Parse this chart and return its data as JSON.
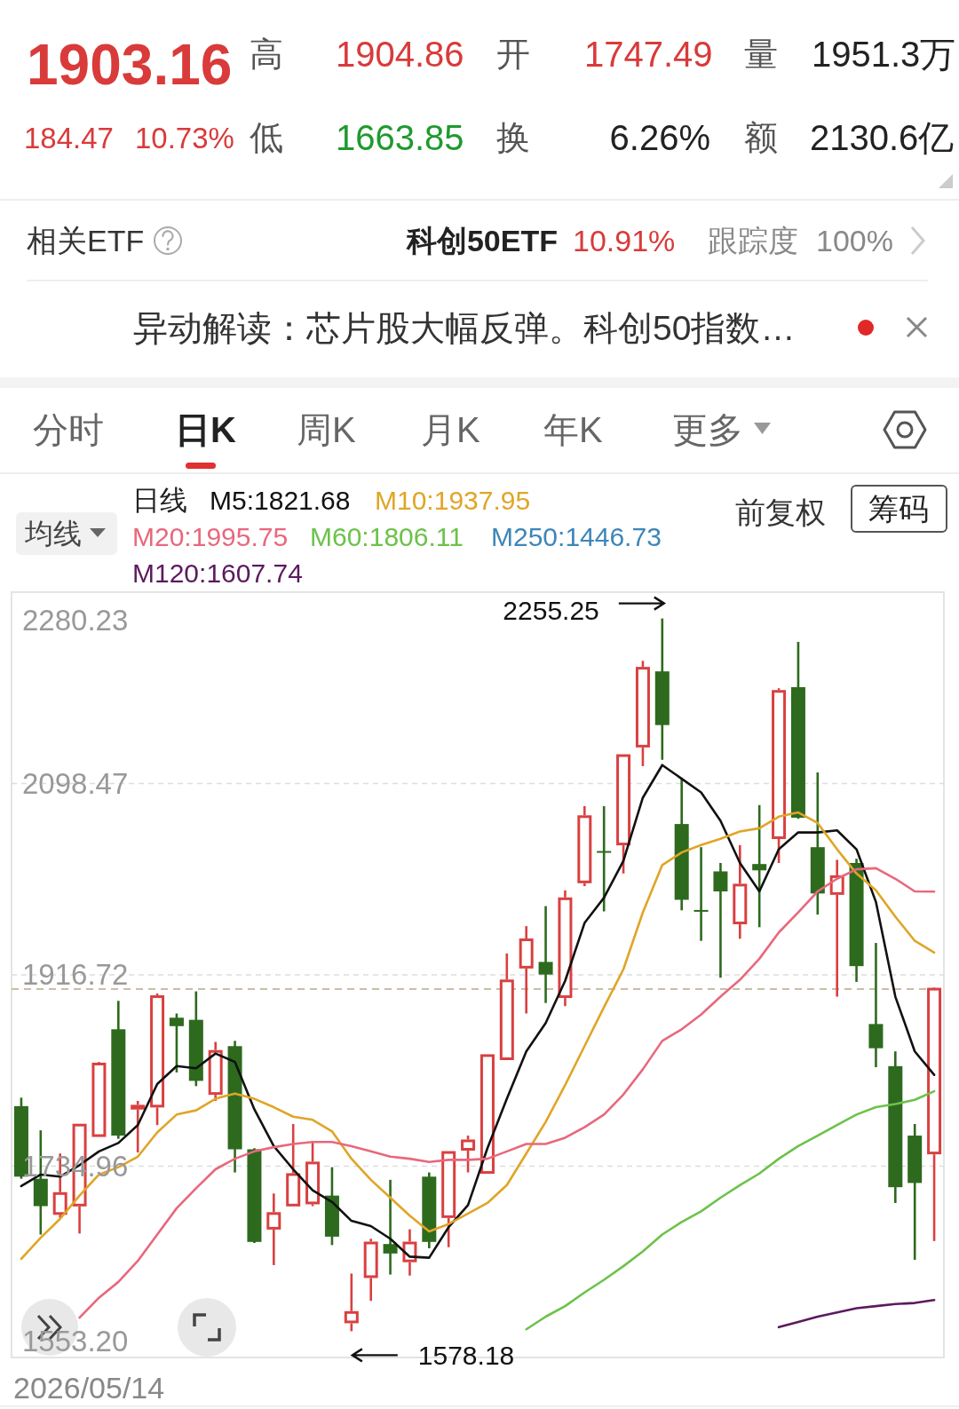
{
  "chart_data": {
    "type": "candlestick",
    "legend_title": "日线",
    "legend": "top",
    "categories": [
      null,
      null,
      null,
      null,
      null,
      null,
      null,
      null,
      null,
      null,
      null,
      null,
      null,
      null,
      null,
      null,
      null,
      null,
      null,
      null,
      null,
      null,
      null,
      null,
      null,
      null,
      null,
      null,
      null,
      null,
      null,
      null,
      null,
      null,
      null,
      null,
      null,
      null,
      null,
      null,
      null,
      null,
      null,
      null,
      null,
      null,
      null,
      null
    ],
    "ohlc": [
      [
        1792,
        1800,
        1723,
        1725
      ],
      [
        1723,
        1769,
        1670,
        1697
      ],
      [
        1690,
        1747,
        1686,
        1709
      ],
      [
        1698,
        1775,
        1671,
        1774
      ],
      [
        1764,
        1834,
        1764,
        1832
      ],
      [
        1865,
        1892,
        1761,
        1764
      ],
      [
        1790,
        1797,
        1748,
        1792
      ],
      [
        1792,
        1899,
        1774,
        1896
      ],
      [
        1876,
        1880,
        1824,
        1868
      ],
      [
        1874,
        1901,
        1811,
        1816
      ],
      [
        1804,
        1853,
        1797,
        1844
      ],
      [
        1849,
        1854,
        1729,
        1751
      ],
      [
        1751,
        1752,
        1662,
        1663
      ],
      [
        1676,
        1709,
        1641,
        1690
      ],
      [
        1698,
        1775,
        1698,
        1727
      ],
      [
        1700,
        1759,
        1697,
        1738
      ],
      [
        1707,
        1734,
        1660,
        1668
      ],
      [
        1587,
        1633,
        1578.18,
        1596
      ],
      [
        1630,
        1666,
        1607,
        1662
      ],
      [
        1661,
        1722,
        1632,
        1652
      ],
      [
        1645,
        1675,
        1631,
        1662
      ],
      [
        1725,
        1729,
        1657,
        1663
      ],
      [
        1687,
        1749,
        1658,
        1748
      ],
      [
        1751,
        1764,
        1729,
        1759
      ],
      [
        1729,
        1841,
        1728,
        1840
      ],
      [
        1837,
        1937,
        1836,
        1911
      ],
      [
        1924,
        1963,
        1880,
        1950
      ],
      [
        1929,
        1982,
        1890,
        1917
      ],
      [
        1896,
        1997,
        1887,
        1989
      ],
      [
        2005,
        2077,
        2001,
        2067
      ],
      [
        2034,
        2077,
        1977,
        2033
      ],
      [
        2041,
        2126,
        2013,
        2125
      ],
      [
        2134,
        2215,
        2115,
        2208
      ],
      [
        2205,
        2255.25,
        2121,
        2154
      ],
      [
        2060,
        2104,
        1978,
        1988
      ],
      [
        1978,
        2038,
        1949,
        1977
      ],
      [
        2015,
        2023,
        1914,
        1996
      ],
      [
        1966,
        2040,
        1951,
        2002
      ],
      [
        2022,
        2078,
        1962,
        2016
      ],
      [
        2047,
        2189,
        2023,
        2186
      ],
      [
        2190,
        2233,
        2065,
        2066
      ],
      [
        2038,
        2109,
        1974,
        1994
      ],
      [
        1994,
        2026,
        1896,
        2010
      ],
      [
        2023,
        2027,
        1910,
        1925
      ],
      [
        1870,
        1947,
        1829,
        1847
      ],
      [
        1830,
        1844,
        1700,
        1715
      ],
      [
        1764,
        1775,
        1646,
        1719
      ],
      [
        1747.49,
        1904.86,
        1663.85,
        1903.16
      ]
    ],
    "series": [
      {
        "name": "M5:1821.68",
        "type": "line",
        "color": "#111111",
        "values": [
          1716,
          1727,
          1725,
          1736,
          1749,
          1757,
          1774,
          1813,
          1830,
          1828,
          1842,
          1834,
          1789,
          1754,
          1732,
          1712,
          1701,
          1683,
          1678,
          1666,
          1649,
          1648,
          1677,
          1698,
          1752,
          1799,
          1844,
          1871,
          1911,
          1966,
          1990,
          2025,
          2085,
          2116,
          2103,
          2090,
          2063,
          2023,
          1996,
          2036,
          2052,
          2052,
          2054,
          2036,
          1986,
          1896,
          1844,
          1821.68
        ]
      },
      {
        "name": "M10:1937.95",
        "type": "line",
        "color": "#e0a526",
        "values": [
          1647,
          1667,
          1685,
          1707,
          1727,
          1734,
          1744,
          1767,
          1784,
          1788,
          1799,
          1804,
          1799,
          1791,
          1782,
          1779,
          1768,
          1742,
          1722,
          1705,
          1688,
          1673,
          1680,
          1690,
          1700,
          1717,
          1747,
          1777,
          1812,
          1849,
          1886,
          1922,
          1976,
          2021,
          2033,
          2040,
          2046,
          2053,
          2056,
          2067,
          2071,
          2061,
          2036,
          2013,
          1997,
          1972,
          1949,
          1937.95
        ]
      },
      {
        "name": "M20:1995.75",
        "type": "line",
        "color": "#e8687c",
        "values": [
          null,
          null,
          null,
          1591,
          1610,
          1625,
          1645,
          1670,
          1695,
          1714,
          1732,
          1742,
          1749,
          1753,
          1756,
          1758,
          1758,
          1754,
          1749,
          1744,
          1742,
          1739,
          1741,
          1741,
          1742,
          1749,
          1756,
          1756,
          1762,
          1772,
          1784,
          1803,
          1827,
          1854,
          1865,
          1879,
          1896,
          1912,
          1932,
          1957,
          1976,
          1996,
          2008,
          2017,
          2018,
          2008,
          1996,
          1995.75
        ]
      },
      {
        "name": "M60:1806.11",
        "type": "line",
        "color": "#6cc24a",
        "values": [
          null,
          null,
          null,
          null,
          null,
          null,
          null,
          null,
          null,
          null,
          null,
          null,
          null,
          null,
          null,
          null,
          null,
          null,
          null,
          null,
          null,
          null,
          null,
          null,
          null,
          null,
          1580,
          1592,
          1602,
          1615,
          1627,
          1640,
          1654,
          1670,
          1682,
          1692,
          1705,
          1717,
          1728,
          1742,
          1754,
          1764,
          1774,
          1784,
          1791,
          1794,
          1798,
          1806.11
        ]
      },
      {
        "name": "M250:1446.73",
        "type": "line",
        "color": "#3d86b8",
        "values": [
          null,
          null,
          null,
          null,
          null,
          null,
          null,
          null,
          null,
          null,
          null,
          null,
          null,
          null,
          null,
          null,
          null,
          null,
          null,
          null,
          null,
          null,
          null,
          null,
          null,
          null,
          null,
          null,
          null,
          null,
          null,
          null,
          null,
          null,
          null,
          null,
          null,
          null,
          null,
          null,
          null,
          null,
          null,
          null,
          null,
          null,
          null,
          null
        ]
      },
      {
        "name": "M120:1607.74",
        "type": "line",
        "color": "#5b1a5e",
        "values": [
          null,
          null,
          null,
          null,
          null,
          null,
          null,
          null,
          null,
          null,
          null,
          null,
          null,
          null,
          null,
          null,
          null,
          null,
          null,
          null,
          null,
          null,
          null,
          null,
          null,
          null,
          null,
          null,
          null,
          null,
          null,
          null,
          null,
          null,
          null,
          null,
          null,
          null,
          null,
          1582,
          1587,
          1592,
          1596,
          1600,
          1602,
          1604,
          1605,
          1607.74
        ]
      }
    ],
    "ylim": [
      1553.2,
      2280.23
    ],
    "yticks": [
      2280.23,
      2098.47,
      1916.72,
      1734.96,
      {
        "value": 1553.2,
        "label": "1553.20"
      }
    ],
    "grid": "y",
    "ref_lines": [
      {
        "axis": "y",
        "value": 1903.16,
        "color": "#b8a888",
        "line_style": "dashed"
      }
    ],
    "annotations": [
      "1903.16",
      "高",
      "1904.86",
      "开",
      "1747.49",
      "量",
      "1951.3万",
      "184.47",
      "10.73%",
      "低",
      "1663.85",
      "换",
      "6.26%",
      "额",
      "2130.6亿",
      "相关ETF",
      "科创50ETF",
      "10.91%",
      "跟踪度",
      "100%",
      "异动解读：芯片股大幅反弹。科创50指数…",
      "分时",
      "日K",
      "周K",
      "月K",
      "年K",
      "更多",
      "均线",
      "前复权",
      "筹码",
      "2255.25",
      "1578.18",
      "2026/05/14"
    ]
  }
}
